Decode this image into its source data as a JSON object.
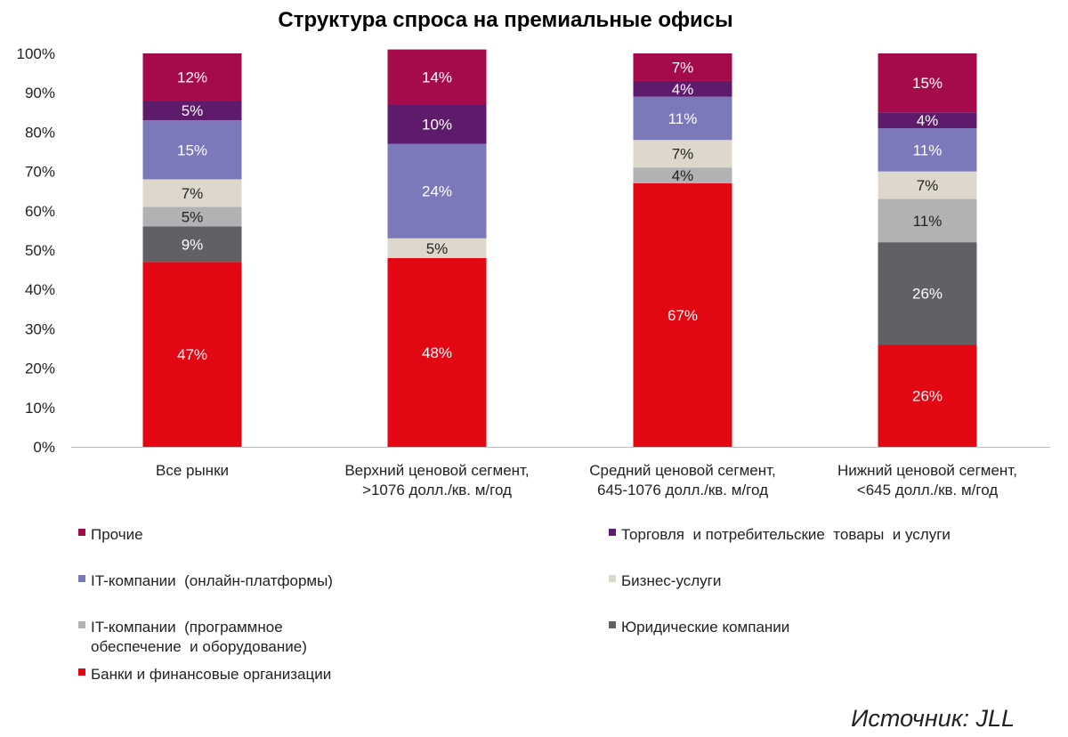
{
  "chart_data": {
    "type": "bar",
    "stacked": true,
    "title": "Структура спроса на премиальные офисы",
    "source": "Источник: JLL",
    "ylim": [
      0,
      100
    ],
    "yticks": [
      "0%",
      "10%",
      "20%",
      "30%",
      "40%",
      "50%",
      "60%",
      "70%",
      "80%",
      "90%",
      "100%"
    ],
    "categories": [
      [
        "Все рынки"
      ],
      [
        "Верхний ценовой сегмент,",
        ">1076 долл./кв. м/год"
      ],
      [
        "Средний ценовой сегмент,",
        "645-1076 долл./кв. м/год"
      ],
      [
        "Нижний ценовой сегмент,",
        "<645 долл./кв. м/год"
      ]
    ],
    "series": [
      {
        "name": "Банки и финансовые организации",
        "color": "#e30613",
        "label_color": "#ffffff",
        "values": [
          47,
          48,
          67,
          26
        ]
      },
      {
        "name": "Юридические компании",
        "color": "#616165",
        "label_color": "#ffffff",
        "values": [
          9,
          0,
          0,
          26
        ]
      },
      {
        "name": "IT-компании (программное обеспечение и оборудование)",
        "legend_lines": [
          "IT-компании  (программное",
          "обеспечение  и оборудование)"
        ],
        "color": "#b1b2b4",
        "label_color": "#222222",
        "values": [
          5,
          0,
          4,
          11
        ]
      },
      {
        "name": "Бизнес-услуги",
        "color": "#ddd8cb",
        "label_color": "#222222",
        "values": [
          7,
          5,
          7,
          7
        ]
      },
      {
        "name": "IT-компании (онлайн-платформы)",
        "legend_lines": [
          "IT-компании  (онлайн-платформы)"
        ],
        "color": "#7b79b9",
        "label_color": "#ffffff",
        "values": [
          15,
          24,
          11,
          11
        ]
      },
      {
        "name": "Торговля и потребительские товары и услуги",
        "legend_lines": [
          "Торговля  и потребительские  товары  и услуги"
        ],
        "color": "#5e1b6c",
        "label_color": "#ffffff",
        "values": [
          5,
          10,
          4,
          4
        ]
      },
      {
        "name": "Прочие",
        "color": "#a50a4a",
        "label_color": "#ffffff",
        "values": [
          12,
          14,
          7,
          15
        ]
      }
    ],
    "legend_order": [
      6,
      5,
      4,
      3,
      2,
      1,
      0
    ]
  }
}
